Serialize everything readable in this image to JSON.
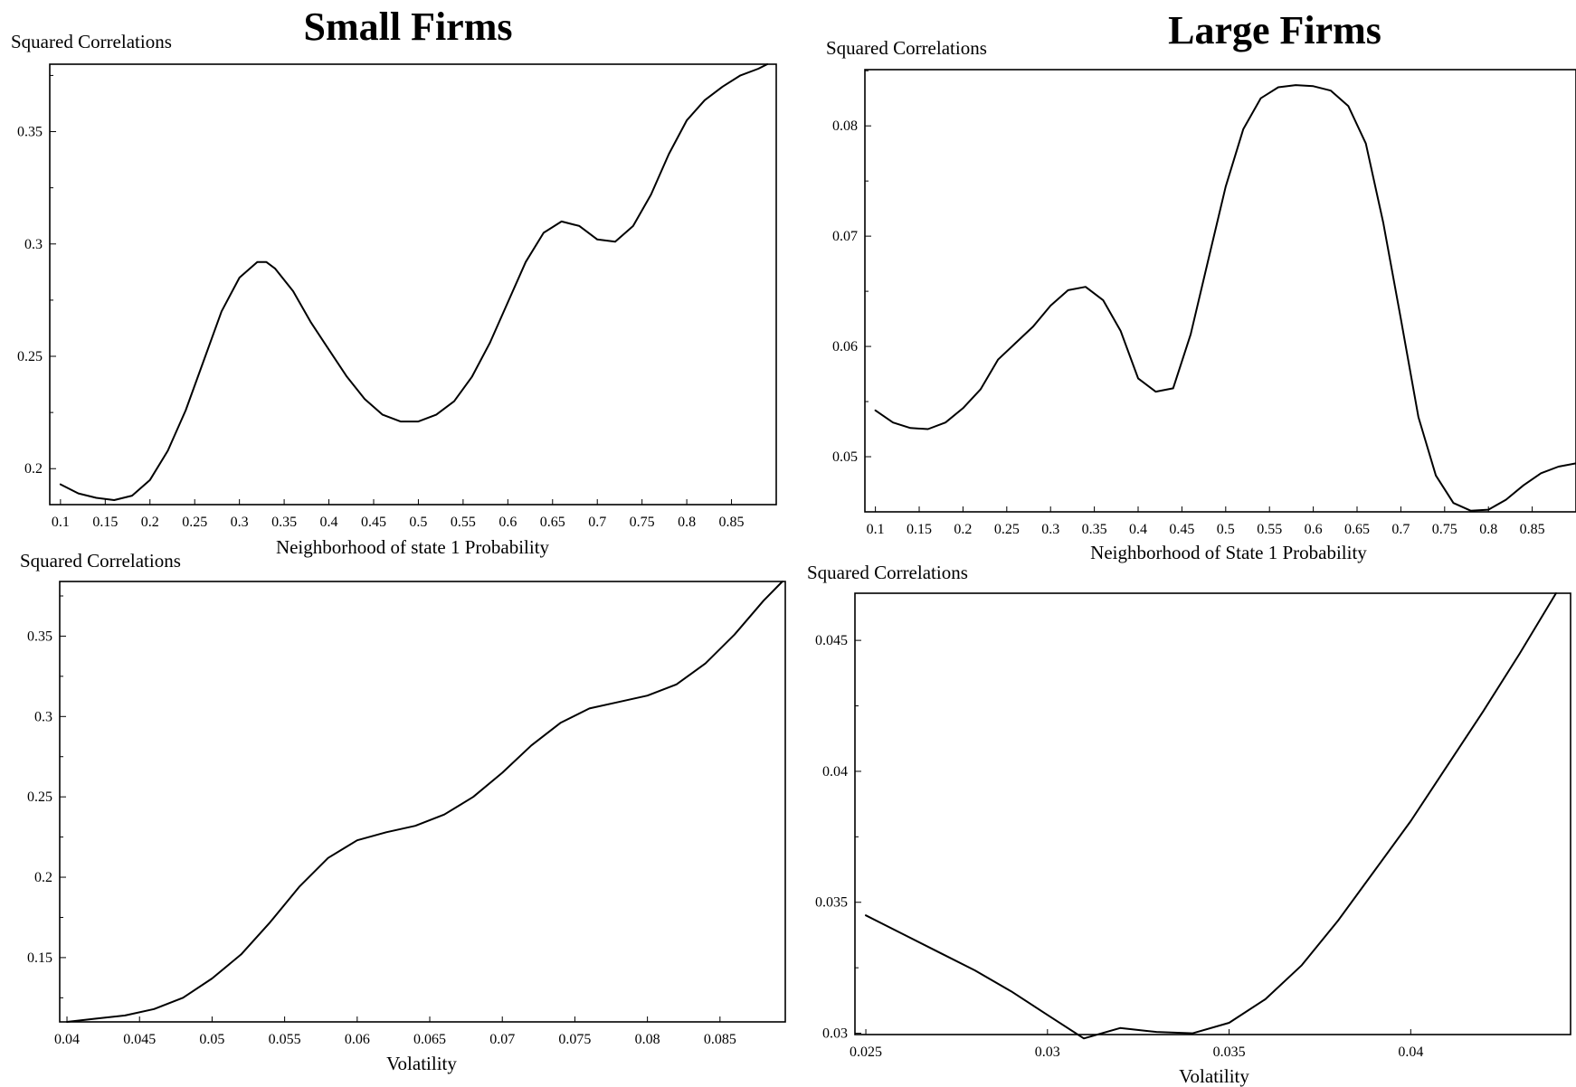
{
  "titles": {
    "small": "Small Firms",
    "large": "Large Firms"
  },
  "chart_data": [
    {
      "type": "line",
      "ylabel": "Squared Correlations",
      "xlabel": "Neighborhood of state 1 Probability",
      "xlim": [
        0.088,
        0.9
      ],
      "ylim": [
        0.184,
        0.38
      ],
      "xticks": [
        "0.1",
        "0.15",
        "0.2",
        "0.25",
        "0.3",
        "0.35",
        "0.4",
        "0.45",
        "0.5",
        "0.55",
        "0.6",
        "0.65",
        "0.7",
        "0.75",
        "0.8",
        "0.85"
      ],
      "yticks": [
        "0.2",
        "0.25",
        "0.3",
        "0.35"
      ],
      "series": [
        {
          "x": [
            0.1,
            0.12,
            0.14,
            0.16,
            0.18,
            0.2,
            0.22,
            0.24,
            0.26,
            0.28,
            0.3,
            0.32,
            0.33,
            0.34,
            0.36,
            0.38,
            0.4,
            0.42,
            0.44,
            0.46,
            0.48,
            0.5,
            0.52,
            0.54,
            0.56,
            0.58,
            0.6,
            0.62,
            0.64,
            0.66,
            0.68,
            0.7,
            0.72,
            0.74,
            0.76,
            0.78,
            0.8,
            0.82,
            0.84,
            0.86,
            0.88,
            0.89
          ],
          "y": [
            0.193,
            0.189,
            0.187,
            0.186,
            0.188,
            0.195,
            0.208,
            0.226,
            0.248,
            0.27,
            0.285,
            0.292,
            0.292,
            0.289,
            0.279,
            0.265,
            0.253,
            0.241,
            0.231,
            0.224,
            0.221,
            0.221,
            0.224,
            0.23,
            0.241,
            0.256,
            0.274,
            0.292,
            0.305,
            0.31,
            0.308,
            0.302,
            0.301,
            0.308,
            0.322,
            0.34,
            0.355,
            0.364,
            0.37,
            0.375,
            0.378,
            0.38
          ]
        }
      ]
    },
    {
      "type": "line",
      "ylabel": "Squared Correlations",
      "xlabel": "Neighborhood of State 1 Probability",
      "xlim": [
        0.088,
        0.9
      ],
      "ylim": [
        0.045,
        0.0851
      ],
      "xticks": [
        "0.1",
        "0.15",
        "0.2",
        "0.25",
        "0.3",
        "0.35",
        "0.4",
        "0.45",
        "0.5",
        "0.55",
        "0.6",
        "0.65",
        "0.7",
        "0.75",
        "0.8",
        "0.85"
      ],
      "yticks": [
        "0.05",
        "0.06",
        "0.07",
        "0.08"
      ],
      "series": [
        {
          "x": [
            0.1,
            0.12,
            0.14,
            0.16,
            0.18,
            0.2,
            0.22,
            0.24,
            0.26,
            0.28,
            0.3,
            0.32,
            0.34,
            0.36,
            0.38,
            0.4,
            0.42,
            0.44,
            0.46,
            0.48,
            0.5,
            0.52,
            0.54,
            0.56,
            0.58,
            0.6,
            0.62,
            0.64,
            0.66,
            0.68,
            0.7,
            0.72,
            0.74,
            0.76,
            0.78,
            0.8,
            0.82,
            0.84,
            0.86,
            0.88,
            0.9
          ],
          "y": [
            0.0542,
            0.0531,
            0.0526,
            0.0525,
            0.0531,
            0.0544,
            0.0561,
            0.0588,
            0.0603,
            0.0618,
            0.0637,
            0.0651,
            0.0654,
            0.0642,
            0.0614,
            0.0571,
            0.0559,
            0.0562,
            0.0611,
            0.0678,
            0.0745,
            0.0797,
            0.0825,
            0.0835,
            0.0837,
            0.0836,
            0.0832,
            0.0818,
            0.0784,
            0.0712,
            0.0625,
            0.0536,
            0.0483,
            0.0458,
            0.0451,
            0.0452,
            0.0461,
            0.0474,
            0.0485,
            0.0491,
            0.0494
          ]
        }
      ]
    },
    {
      "type": "line",
      "ylabel": "Squared Correlations",
      "xlabel": "Volatility",
      "xlim": [
        0.0395,
        0.0895
      ],
      "ylim": [
        0.11,
        0.384
      ],
      "xticks": [
        "0.04",
        "0.045",
        "0.05",
        "0.055",
        "0.06",
        "0.065",
        "0.07",
        "0.075",
        "0.08",
        "0.085"
      ],
      "yticks": [
        "0.15",
        "0.2",
        "0.25",
        "0.3",
        "0.35"
      ],
      "series": [
        {
          "x": [
            0.04,
            0.042,
            0.044,
            0.046,
            0.048,
            0.05,
            0.052,
            0.054,
            0.056,
            0.058,
            0.06,
            0.062,
            0.064,
            0.066,
            0.068,
            0.07,
            0.072,
            0.074,
            0.076,
            0.078,
            0.08,
            0.082,
            0.084,
            0.086,
            0.088,
            0.0893
          ],
          "y": [
            0.11,
            0.112,
            0.114,
            0.118,
            0.125,
            0.137,
            0.152,
            0.172,
            0.194,
            0.212,
            0.223,
            0.228,
            0.232,
            0.239,
            0.25,
            0.265,
            0.282,
            0.296,
            0.305,
            0.309,
            0.313,
            0.32,
            0.333,
            0.351,
            0.372,
            0.384
          ]
        }
      ]
    },
    {
      "type": "line",
      "ylabel": "Squared Correlations",
      "xlabel": "Volatility",
      "xlim": [
        0.0247,
        0.0444
      ],
      "ylim": [
        0.02995,
        0.0468
      ],
      "xticks": [
        "0.025",
        "0.03",
        "0.035",
        "0.04"
      ],
      "yticks": [
        "0.03",
        "0.035",
        "0.04",
        "0.045"
      ],
      "series": [
        {
          "x": [
            0.025,
            0.026,
            0.027,
            0.028,
            0.029,
            0.03,
            0.031,
            0.032,
            0.033,
            0.034,
            0.035,
            0.036,
            0.037,
            0.038,
            0.039,
            0.04,
            0.041,
            0.042,
            0.043,
            0.044
          ],
          "y": [
            0.0345,
            0.0338,
            0.0331,
            0.0324,
            0.0316,
            0.0307,
            0.0298,
            0.0302,
            0.03005,
            0.03,
            0.0304,
            0.0313,
            0.0326,
            0.0343,
            0.0362,
            0.0381,
            0.0402,
            0.0423,
            0.0445,
            0.0468
          ]
        }
      ]
    }
  ]
}
